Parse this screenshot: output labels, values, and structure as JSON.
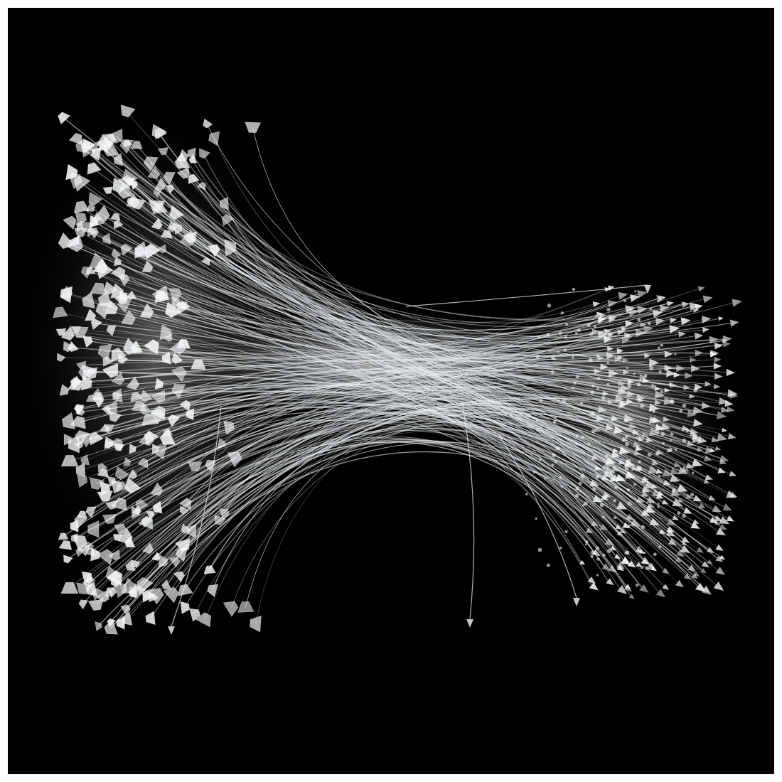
{
  "image": {
    "subject": "tag-fastener-bundle",
    "background_color": "#000000",
    "border_color": "#ffffff",
    "strand_color": "#e8ecef",
    "tip_color": "#f4f6f8"
  }
}
